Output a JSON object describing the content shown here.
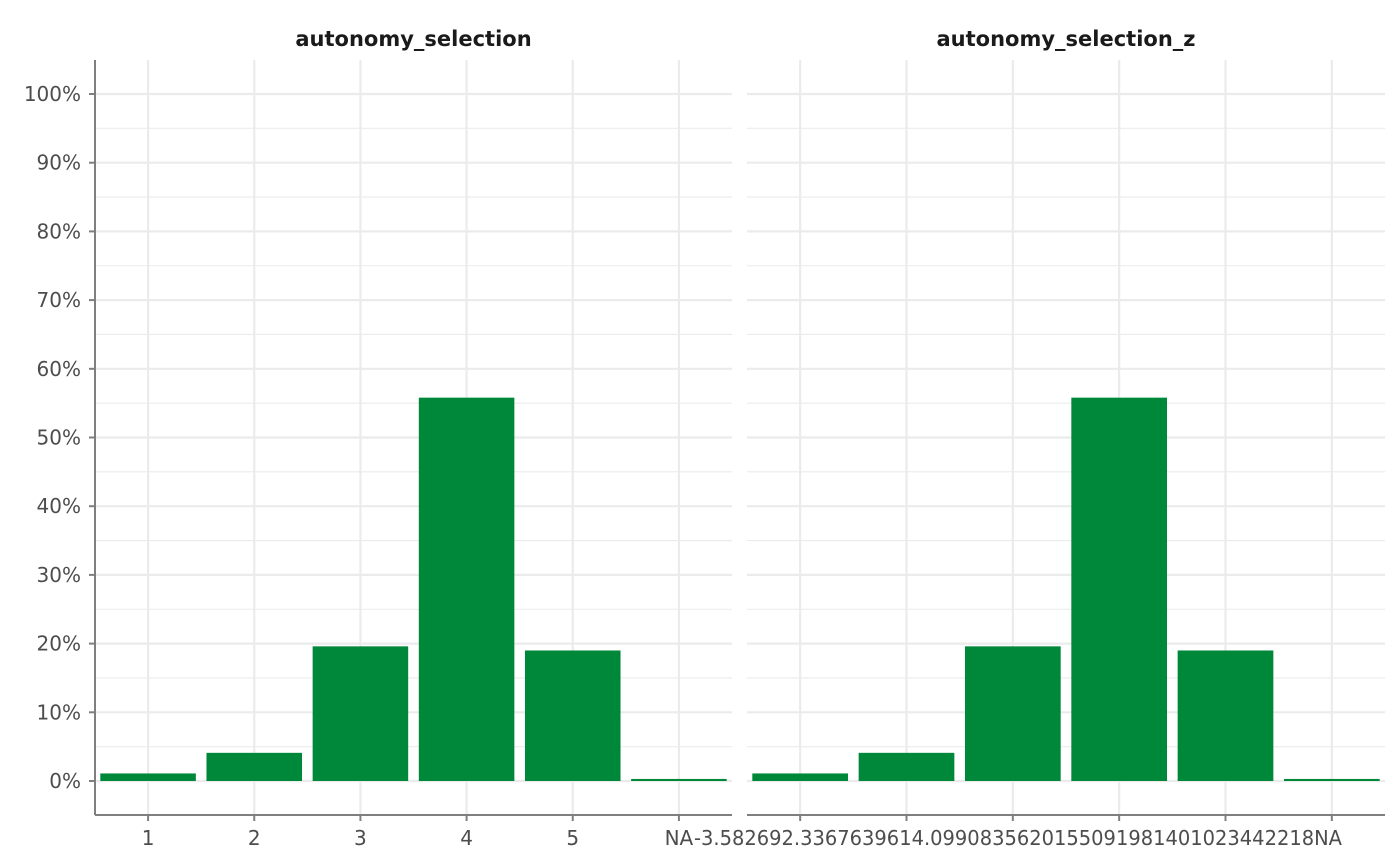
{
  "chart_data": [
    {
      "type": "bar",
      "title": "autonomy_selection",
      "categories": [
        "1",
        "2",
        "3",
        "4",
        "5",
        "NA"
      ],
      "values": [
        1.1,
        4.1,
        19.6,
        55.8,
        19.0,
        0.3
      ],
      "ylim": [
        -5,
        105
      ],
      "yticks": [
        "0%",
        "10%",
        "20%",
        "30%",
        "40%",
        "50%",
        "60%",
        "70%",
        "80%",
        "90%",
        "100%"
      ],
      "color": "#00883a",
      "grid": true
    },
    {
      "type": "bar",
      "title": "autonomy_selection_z",
      "categories": [
        "-3.58269245676395",
        "-2.33676396448066",
        "-1.09083547219737",
        "0.155093020085912",
        "1.4010215123692",
        "NA"
      ],
      "tick_label_text": "-3.582692.3367639614.0990835620155091981401023442218NA",
      "values": [
        1.1,
        4.1,
        19.6,
        55.8,
        19.0,
        0.3
      ],
      "ylim": [
        -5,
        105
      ],
      "color": "#00883a",
      "grid": true
    }
  ]
}
